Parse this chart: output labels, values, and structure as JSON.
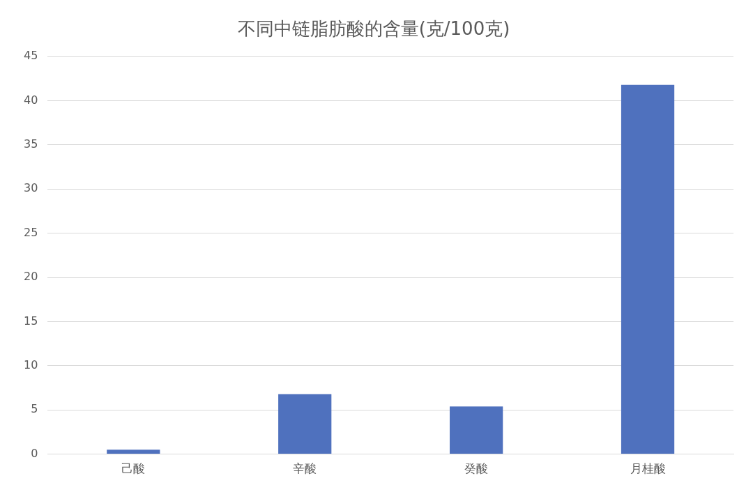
{
  "chart_data": {
    "type": "bar",
    "title": "不同中链脂肪酸的含量(克/100克)",
    "categories": [
      "己酸",
      "辛酸",
      "癸酸",
      "月桂酸"
    ],
    "values": [
      0.5,
      6.8,
      5.4,
      41.8
    ],
    "color": "#4f71be",
    "ylim": [
      0,
      45
    ],
    "yticks": [
      0,
      5,
      10,
      15,
      20,
      25,
      30,
      35,
      40,
      45
    ],
    "grid": "y"
  }
}
